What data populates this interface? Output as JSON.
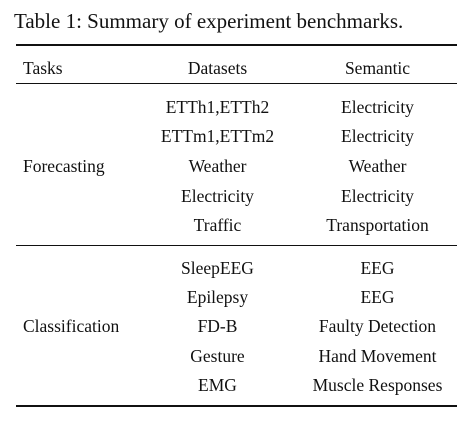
{
  "caption": "Table 1: Summary of experiment benchmarks.",
  "headers": {
    "tasks": "Tasks",
    "datasets": "Datasets",
    "semantic": "Semantic"
  },
  "groups": [
    {
      "task": "Forecasting",
      "rows": [
        {
          "dataset": "ETTh1,ETTh2",
          "semantic": "Electricity"
        },
        {
          "dataset": "ETTm1,ETTm2",
          "semantic": "Electricity"
        },
        {
          "dataset": "Weather",
          "semantic": "Weather"
        },
        {
          "dataset": "Electricity",
          "semantic": "Electricity"
        },
        {
          "dataset": "Traffic",
          "semantic": "Transportation"
        }
      ]
    },
    {
      "task": "Classification",
      "rows": [
        {
          "dataset": "SleepEEG",
          "semantic": "EEG"
        },
        {
          "dataset": "Epilepsy",
          "semantic": "EEG"
        },
        {
          "dataset": "FD-B",
          "semantic": "Faulty Detection"
        },
        {
          "dataset": "Gesture",
          "semantic": "Hand Movement"
        },
        {
          "dataset": "EMG",
          "semantic": "Muscle Responses"
        }
      ]
    }
  ]
}
